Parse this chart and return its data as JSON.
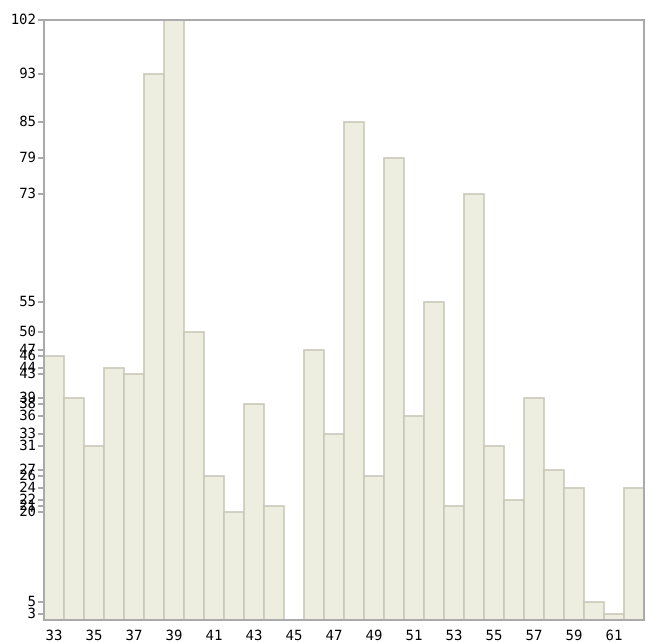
{
  "chart_data": {
    "type": "bar",
    "categories": [
      "33",
      null,
      "35",
      null,
      "37",
      null,
      "39",
      null,
      "41",
      null,
      "43",
      null,
      "45",
      null,
      "47",
      null,
      "49",
      null,
      "51",
      null,
      "53",
      null,
      "55",
      null,
      "57",
      null,
      "59",
      null,
      "61",
      null
    ],
    "values": [
      46,
      39,
      31,
      44,
      43,
      93,
      102,
      50,
      26,
      20,
      38,
      21,
      2,
      47,
      33,
      85,
      26,
      79,
      36,
      55,
      21,
      73,
      31,
      22,
      39,
      27,
      24,
      5,
      3,
      24
    ],
    "color": "#eeeee0",
    "ylim": [
      2,
      102
    ],
    "yticks": [
      102,
      93,
      85,
      79,
      73,
      55,
      50,
      47,
      46,
      44,
      43,
      39,
      38,
      36,
      33,
      31,
      27,
      26,
      24,
      22,
      21,
      20,
      5,
      3
    ],
    "grid": false
  }
}
